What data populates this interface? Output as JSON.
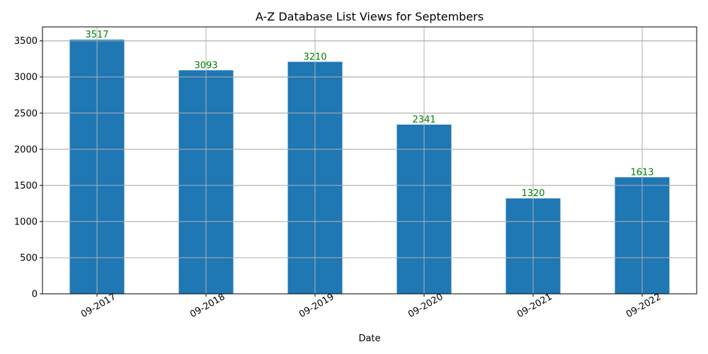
{
  "chart_data": {
    "type": "bar",
    "title": "A-Z Database List Views for Septembers",
    "xlabel": "Date",
    "ylabel": "",
    "categories": [
      "09-2017",
      "09-2018",
      "09-2019",
      "09-2020",
      "09-2021",
      "09-2022"
    ],
    "values": [
      3517,
      3093,
      3210,
      2341,
      1320,
      1613
    ],
    "data_labels": [
      "3517",
      "3093",
      "3210",
      "2341",
      "1320",
      "1613"
    ],
    "ylim": [
      0,
      3693
    ],
    "yticks": [
      0,
      500,
      1000,
      1500,
      2000,
      2500,
      3000,
      3500
    ],
    "ytick_labels": [
      "0",
      "500",
      "1000",
      "1500",
      "2000",
      "2500",
      "3000",
      "3500"
    ],
    "grid": true,
    "bar_color": "#1f77b4",
    "label_color": "#008000",
    "xtick_rotation": 30
  }
}
